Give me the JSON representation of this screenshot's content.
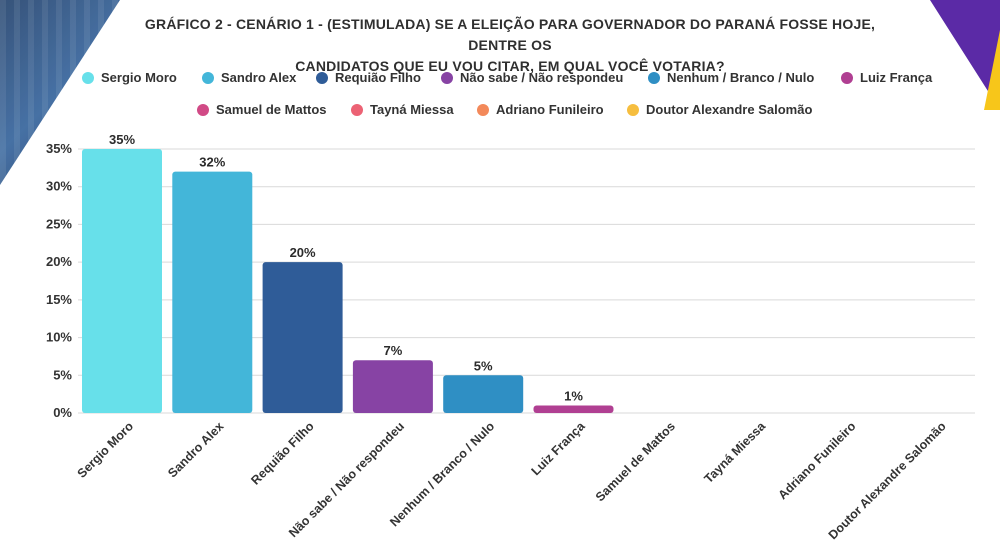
{
  "chart_data": {
    "type": "bar",
    "title": "GRÁFICO 2 - CENÁRIO 1 - (ESTIMULADA) SE A ELEIÇÃO PARA GOVERNADOR DO PARANÁ FOSSE HOJE, DENTRE OS CANDIDATOS QUE EU VOU CITAR, EM QUAL VOCÊ VOTARIA?",
    "title_lines": [
      "GRÁFICO 2 - CENÁRIO 1 - (ESTIMULADA) SE A ELEIÇÃO PARA GOVERNADOR DO PARANÁ FOSSE HOJE, DENTRE OS",
      "CANDIDATOS QUE EU VOU CITAR, EM QUAL VOCÊ VOTARIA?"
    ],
    "categories": [
      "Sergio Moro",
      "Sandro Alex",
      "Requião Filho",
      "Não sabe / Não respondeu",
      "Nenhum / Branco / Nulo",
      "Luiz França",
      "Samuel de Mattos",
      "Tayná Miessa",
      "Adriano Funileiro",
      "Doutor Alexandre Salomão"
    ],
    "values": [
      35,
      32,
      20,
      7,
      5,
      1,
      0,
      0,
      0,
      0
    ],
    "data_labels": [
      "35%",
      "32%",
      "20%",
      "7%",
      "5%",
      "1%",
      "",
      "",
      "",
      ""
    ],
    "colors": [
      "#67e0ea",
      "#43b6d9",
      "#2f5c98",
      "#8743a4",
      "#2f8fc4",
      "#b03f92",
      "#d14a86",
      "#ec6274",
      "#f3895a",
      "#f6be3f"
    ],
    "ylim": [
      0,
      35
    ],
    "yticks": [
      0,
      5,
      10,
      15,
      20,
      25,
      30,
      35
    ],
    "ytick_labels": [
      "0%",
      "5%",
      "10%",
      "15%",
      "20%",
      "25%",
      "30%",
      "35%"
    ],
    "xlabel": "",
    "ylabel": "",
    "grid": true,
    "legend_position": "top"
  }
}
